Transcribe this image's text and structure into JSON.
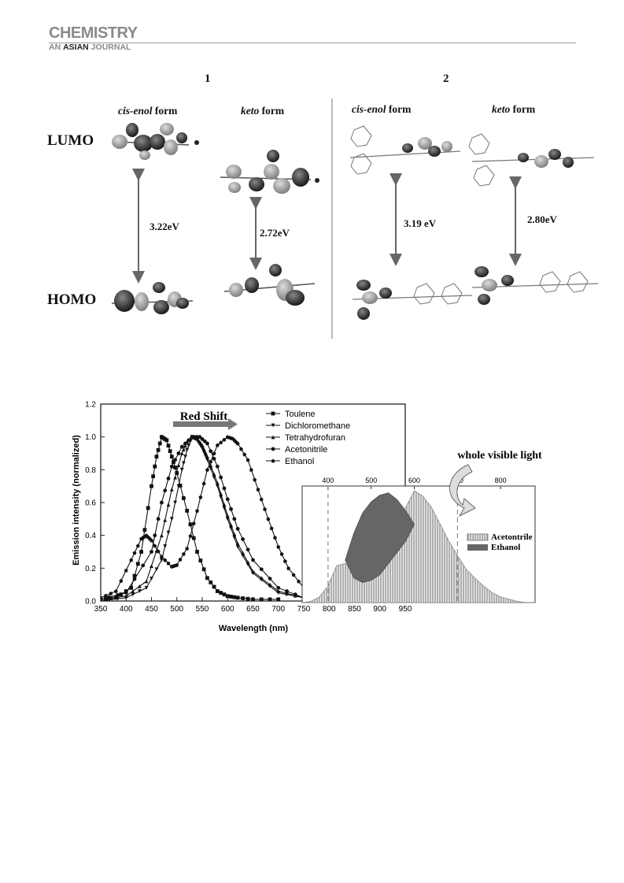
{
  "journal": {
    "name": "CHEMISTRY",
    "sub_prefix": "AN ",
    "sub_bold": "ASIAN",
    "sub_suffix": " JOURNAL"
  },
  "orbitals": {
    "compound_1": "1",
    "compound_2": "2",
    "cis_enol_italic": "cis-enol",
    "keto_italic": "keto",
    "form_suffix": " form",
    "lumo": "LUMO",
    "homo": "HOMO",
    "gaps": [
      "3.22eV",
      "2.72eV",
      "3.19 eV",
      "2.80eV"
    ]
  },
  "chart_data": [
    {
      "type": "line",
      "xlabel": "Wavelength (nm)",
      "ylabel": "Emission intensity (normalized)",
      "xlim": [
        350,
        950
      ],
      "ylim": [
        0,
        1.2
      ],
      "x_ticks": [
        350,
        400,
        450,
        500,
        550,
        600,
        650,
        700,
        750,
        800,
        850,
        900,
        950
      ],
      "y_ticks": [
        0.0,
        0.2,
        0.4,
        0.6,
        0.8,
        1.0,
        1.2
      ],
      "annotation": "Red Shift",
      "series": [
        {
          "name": "Toulene",
          "marker": "square",
          "x": [
            350,
            380,
            410,
            430,
            450,
            460,
            470,
            480,
            490,
            500,
            520,
            540,
            560,
            580,
            600,
            620,
            650,
            700
          ],
          "y": [
            0.01,
            0.02,
            0.08,
            0.3,
            0.7,
            0.88,
            1.0,
            0.98,
            0.88,
            0.78,
            0.55,
            0.3,
            0.14,
            0.06,
            0.03,
            0.02,
            0.01,
            0.01
          ]
        },
        {
          "name": "Dichloromethane",
          "marker": "triangle-down",
          "x": [
            350,
            400,
            440,
            470,
            490,
            510,
            520,
            530,
            540,
            550,
            560,
            580,
            600,
            620,
            650,
            700,
            750
          ],
          "y": [
            0.0,
            0.02,
            0.08,
            0.25,
            0.5,
            0.8,
            0.92,
            1.0,
            0.98,
            0.93,
            0.86,
            0.7,
            0.5,
            0.33,
            0.17,
            0.05,
            0.02
          ]
        },
        {
          "name": "Tetrahydrofuran",
          "marker": "triangle-up",
          "x": [
            350,
            400,
            440,
            470,
            490,
            510,
            520,
            530,
            540,
            550,
            560,
            580,
            600,
            620,
            650,
            700,
            750
          ],
          "y": [
            0.01,
            0.03,
            0.12,
            0.4,
            0.68,
            0.9,
            0.97,
            1.0,
            0.99,
            0.95,
            0.88,
            0.72,
            0.52,
            0.35,
            0.18,
            0.06,
            0.02
          ]
        },
        {
          "name": "Acetonitrile",
          "marker": "circle",
          "x": [
            350,
            400,
            450,
            470,
            490,
            510,
            530,
            545,
            560,
            580,
            600,
            620,
            650,
            700,
            750
          ],
          "y": [
            0.01,
            0.05,
            0.3,
            0.6,
            0.82,
            0.94,
            1.0,
            1.0,
            0.96,
            0.82,
            0.62,
            0.44,
            0.25,
            0.08,
            0.02
          ]
        },
        {
          "name": "Ethanol",
          "marker": "pentagon",
          "x": [
            350,
            380,
            410,
            430,
            440,
            450,
            470,
            490,
            500,
            520,
            540,
            560,
            580,
            600,
            610,
            620,
            640,
            660,
            680,
            700,
            720,
            750
          ],
          "y": [
            0.02,
            0.06,
            0.25,
            0.38,
            0.4,
            0.37,
            0.27,
            0.21,
            0.22,
            0.32,
            0.55,
            0.8,
            0.95,
            1.0,
            0.99,
            0.96,
            0.86,
            0.68,
            0.5,
            0.33,
            0.2,
            0.08
          ]
        }
      ]
    },
    {
      "type": "area",
      "title": "whole visible light",
      "x_ticks": [
        400,
        500,
        600,
        700,
        800
      ],
      "xlim": [
        340,
        880
      ],
      "dashed_lines_x": [
        400,
        700
      ],
      "series": [
        {
          "name": "Acetontrile",
          "x": [
            340,
            360,
            380,
            400,
            420,
            440,
            460,
            480,
            500,
            520,
            540,
            560,
            580,
            600,
            620,
            640,
            660,
            680,
            700,
            720,
            740,
            760,
            780,
            800,
            820,
            840,
            860,
            880
          ],
          "y": [
            0.0,
            0.01,
            0.05,
            0.15,
            0.33,
            0.35,
            0.28,
            0.22,
            0.3,
            0.45,
            0.58,
            0.7,
            0.85,
            1.0,
            0.95,
            0.85,
            0.7,
            0.55,
            0.42,
            0.3,
            0.22,
            0.15,
            0.09,
            0.05,
            0.03,
            0.01,
            0.0,
            0.0
          ]
        },
        {
          "name": "Ethanol",
          "x": [
            440,
            460,
            480,
            500,
            520,
            540,
            560,
            580,
            600,
            580,
            560,
            540,
            520,
            500,
            480,
            460,
            440
          ],
          "y": [
            0.38,
            0.62,
            0.8,
            0.9,
            0.96,
            0.98,
            0.92,
            0.82,
            0.7,
            0.55,
            0.45,
            0.35,
            0.25,
            0.2,
            0.18,
            0.22,
            0.38
          ]
        }
      ]
    }
  ]
}
